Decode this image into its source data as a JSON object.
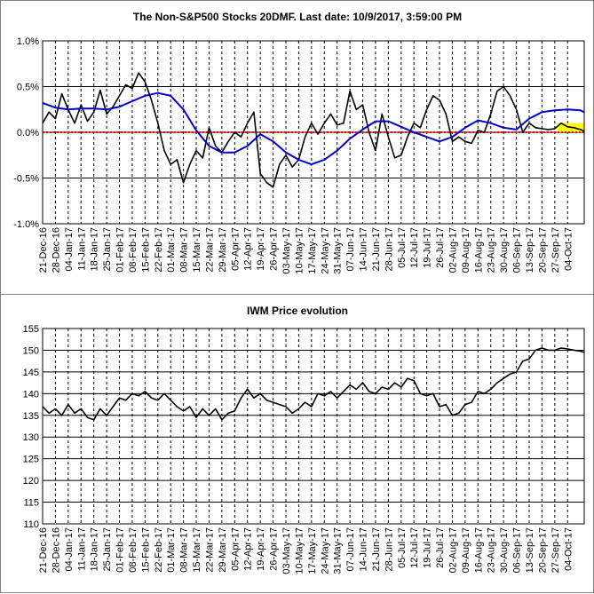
{
  "chart_data": [
    {
      "type": "line",
      "title": "The Non-S&P500 Stocks 20DMF. Last date: 10/9/2017, 3:59:00 PM",
      "y_ticks": [
        "1.0%",
        "0.5%",
        "0.0%",
        "-0.5%",
        "-1.0%"
      ],
      "ylim": [
        -1.0,
        1.0
      ],
      "y_unit": "%",
      "x_tick_labels": [
        "21-Dec-16",
        "28-Dec-16",
        "04-Jan-17",
        "11-Jan-17",
        "18-Jan-17",
        "25-Jan-17",
        "01-Feb-17",
        "08-Feb-17",
        "15-Feb-17",
        "22-Feb-17",
        "01-Mar-17",
        "08-Mar-17",
        "15-Mar-17",
        "22-Mar-17",
        "29-Mar-17",
        "05-Apr-17",
        "12-Apr-17",
        "19-Apr-17",
        "26-Apr-17",
        "03-May-17",
        "10-May-17",
        "17-May-17",
        "24-May-17",
        "31-May-17",
        "07-Jun-17",
        "14-Jun-17",
        "21-Jun-17",
        "28-Jun-17",
        "05-Jul-17",
        "12-Jul-17",
        "19-Jul-17",
        "26-Jul-17",
        "02-Aug-17",
        "09-Aug-17",
        "16-Aug-17",
        "23-Aug-17",
        "30-Aug-17",
        "06-Sep-17",
        "13-Sep-17",
        "20-Sep-17",
        "27-Sep-17",
        "04-Oct-17"
      ],
      "grid": true,
      "reference_line": {
        "y": 0.0,
        "color": "#ff0000"
      },
      "highlight": {
        "x_start": 40.2,
        "x_end": 42.3,
        "y_low": 0.0,
        "y_high": 0.1,
        "color": "#ffff00"
      },
      "series": [
        {
          "color": "#000000",
          "x": [
            0,
            0.5,
            1,
            1.5,
            2,
            2.5,
            3,
            3.5,
            4,
            4.5,
            5,
            5.5,
            6,
            6.5,
            7,
            7.5,
            8,
            8.5,
            9,
            9.5,
            10,
            10.5,
            11,
            11.5,
            12,
            12.5,
            13,
            13.5,
            14,
            14.5,
            15,
            15.5,
            16,
            16.5,
            17,
            17.5,
            18,
            18.5,
            19,
            19.5,
            20,
            20.5,
            21,
            21.5,
            22,
            22.5,
            23,
            23.5,
            24,
            24.5,
            25,
            25.5,
            26,
            26.5,
            27,
            27.5,
            28,
            28.5,
            29,
            29.5,
            30,
            30.5,
            31,
            31.5,
            32,
            32.5,
            33,
            33.5,
            34,
            34.5,
            35,
            35.5,
            36,
            36.5,
            37,
            37.5,
            38,
            38.5,
            39,
            39.5,
            40,
            40.5,
            41,
            41.5,
            42,
            42.3
          ],
          "y": [
            0.1,
            0.22,
            0.15,
            0.42,
            0.25,
            0.1,
            0.3,
            0.12,
            0.22,
            0.46,
            0.2,
            0.28,
            0.4,
            0.52,
            0.48,
            0.65,
            0.55,
            0.35,
            0.1,
            -0.2,
            -0.35,
            -0.3,
            -0.55,
            -0.35,
            -0.2,
            -0.28,
            0.05,
            -0.15,
            -0.22,
            -0.1,
            0.0,
            -0.05,
            0.1,
            0.22,
            -0.45,
            -0.55,
            -0.6,
            -0.35,
            -0.25,
            -0.38,
            -0.3,
            -0.05,
            0.1,
            -0.02,
            0.1,
            0.2,
            0.08,
            0.1,
            0.45,
            0.25,
            0.3,
            0.0,
            -0.2,
            0.2,
            -0.05,
            -0.28,
            -0.25,
            -0.05,
            0.1,
            0.05,
            0.25,
            0.4,
            0.35,
            0.2,
            -0.1,
            -0.05,
            -0.1,
            -0.12,
            0.02,
            0.0,
            0.2,
            0.45,
            0.5,
            0.4,
            0.25,
            0.0,
            0.1,
            0.05,
            0.04,
            0.03,
            0.04,
            0.1,
            0.06,
            0.05,
            0.03,
            0.01
          ]
        },
        {
          "color": "#0000cc",
          "x": [
            0,
            1,
            2,
            3,
            4,
            5,
            6,
            7,
            8,
            9,
            10,
            11,
            12,
            13,
            14,
            15,
            16,
            17,
            18,
            19,
            20,
            21,
            22,
            23,
            24,
            25,
            26,
            27,
            28,
            29,
            30,
            31,
            32,
            33,
            34,
            35,
            36,
            37,
            38,
            39,
            40,
            41,
            42,
            42.3
          ],
          "y": [
            0.32,
            0.27,
            0.25,
            0.26,
            0.26,
            0.25,
            0.28,
            0.34,
            0.4,
            0.43,
            0.4,
            0.25,
            0.02,
            -0.15,
            -0.22,
            -0.22,
            -0.15,
            -0.02,
            -0.1,
            -0.22,
            -0.3,
            -0.35,
            -0.3,
            -0.2,
            -0.07,
            0.03,
            0.12,
            0.12,
            0.06,
            0.0,
            -0.05,
            -0.1,
            -0.05,
            0.05,
            0.13,
            0.1,
            0.05,
            0.03,
            0.15,
            0.22,
            0.24,
            0.25,
            0.24,
            0.22
          ]
        }
      ]
    },
    {
      "type": "line",
      "title": "IWM Price evolution",
      "y_ticks": [
        "155",
        "150",
        "145",
        "140",
        "135",
        "130",
        "125",
        "120",
        "115",
        "110"
      ],
      "ylim": [
        110,
        155
      ],
      "x_tick_labels": [
        "21-Dec-16",
        "28-Dec-16",
        "04-Jan-17",
        "11-Jan-17",
        "18-Jan-17",
        "25-Jan-17",
        "01-Feb-17",
        "08-Feb-17",
        "15-Feb-17",
        "22-Feb-17",
        "01-Mar-17",
        "08-Mar-17",
        "15-Mar-17",
        "22-Mar-17",
        "29-Mar-17",
        "05-Apr-17",
        "12-Apr-17",
        "19-Apr-17",
        "26-Apr-17",
        "03-May-17",
        "10-May-17",
        "17-May-17",
        "24-May-17",
        "31-May-17",
        "07-Jun-17",
        "14-Jun-17",
        "21-Jun-17",
        "28-Jun-17",
        "05-Jul-17",
        "12-Jul-17",
        "19-Jul-17",
        "26-Jul-17",
        "02-Aug-17",
        "09-Aug-17",
        "16-Aug-17",
        "23-Aug-17",
        "30-Aug-17",
        "06-Sep-17",
        "13-Sep-17",
        "20-Sep-17",
        "27-Sep-17",
        "04-Oct-17"
      ],
      "grid": true,
      "series": [
        {
          "color": "#000000",
          "x": [
            0,
            0.5,
            1,
            1.5,
            2,
            2.5,
            3,
            3.5,
            4,
            4.5,
            5,
            5.5,
            6,
            6.5,
            7,
            7.5,
            8,
            8.5,
            9,
            9.5,
            10,
            10.5,
            11,
            11.5,
            12,
            12.5,
            13,
            13.5,
            14,
            14.5,
            15,
            15.5,
            16,
            16.5,
            17,
            17.5,
            18,
            18.5,
            19,
            19.5,
            20,
            20.5,
            21,
            21.5,
            22,
            22.5,
            23,
            23.5,
            24,
            24.5,
            25,
            25.5,
            26,
            26.5,
            27,
            27.5,
            28,
            28.5,
            29,
            29.5,
            30,
            30.5,
            31,
            31.5,
            32,
            32.5,
            33,
            33.5,
            34,
            34.5,
            35,
            35.5,
            36,
            36.5,
            37,
            37.5,
            38,
            38.5,
            39,
            39.5,
            40,
            40.5,
            41,
            41.5,
            42,
            42.3
          ],
          "y": [
            137.0,
            135.5,
            136.5,
            135.0,
            137.5,
            135.5,
            136.5,
            134.5,
            134.0,
            136.5,
            135.0,
            137.0,
            139.0,
            138.5,
            140.0,
            139.5,
            140.5,
            139.0,
            138.5,
            140.0,
            138.5,
            137.0,
            136.0,
            137.0,
            134.5,
            136.5,
            135.0,
            136.5,
            134.0,
            135.5,
            136.0,
            139.0,
            141.0,
            139.0,
            140.0,
            138.5,
            138.0,
            137.5,
            137.0,
            135.5,
            136.5,
            138.0,
            137.0,
            140.0,
            139.5,
            140.5,
            139.0,
            140.5,
            142.0,
            141.0,
            142.5,
            140.5,
            140.0,
            141.5,
            141.0,
            142.5,
            141.5,
            143.5,
            143.0,
            140.0,
            139.5,
            140.0,
            137.0,
            137.5,
            135.0,
            135.5,
            137.5,
            138.0,
            140.5,
            140.0,
            141.0,
            142.5,
            143.5,
            144.5,
            145.0,
            147.5,
            148.0,
            150.0,
            150.5,
            150.0,
            150.0,
            150.5,
            150.3,
            150.0,
            149.8,
            149.5
          ]
        }
      ]
    }
  ]
}
